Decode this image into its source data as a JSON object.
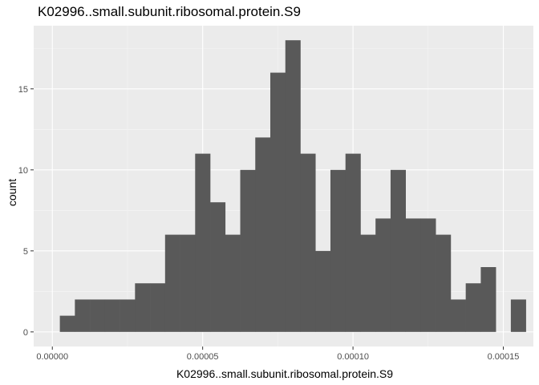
{
  "chart_data": {
    "type": "bar",
    "title": "K02996..small.subunit.ribosomal.protein.S9",
    "xlabel": "K02996..small.subunit.ribosomal.protein.S9",
    "ylabel": "count",
    "bin_width": 5e-06,
    "bins": [
      {
        "x_start": 2.5e-06,
        "count": 1
      },
      {
        "x_start": 7.5e-06,
        "count": 2
      },
      {
        "x_start": 1.25e-05,
        "count": 2
      },
      {
        "x_start": 1.75e-05,
        "count": 2
      },
      {
        "x_start": 2.25e-05,
        "count": 2
      },
      {
        "x_start": 2.75e-05,
        "count": 3
      },
      {
        "x_start": 3.25e-05,
        "count": 3
      },
      {
        "x_start": 3.75e-05,
        "count": 6
      },
      {
        "x_start": 4.25e-05,
        "count": 6
      },
      {
        "x_start": 4.75e-05,
        "count": 11
      },
      {
        "x_start": 5.25e-05,
        "count": 8
      },
      {
        "x_start": 5.75e-05,
        "count": 6
      },
      {
        "x_start": 6.25e-05,
        "count": 10
      },
      {
        "x_start": 6.75e-05,
        "count": 12
      },
      {
        "x_start": 7.25e-05,
        "count": 16
      },
      {
        "x_start": 7.75e-05,
        "count": 18
      },
      {
        "x_start": 8.25e-05,
        "count": 11
      },
      {
        "x_start": 8.75e-05,
        "count": 5
      },
      {
        "x_start": 9.25e-05,
        "count": 10
      },
      {
        "x_start": 9.75e-05,
        "count": 11
      },
      {
        "x_start": 0.0001025,
        "count": 6
      },
      {
        "x_start": 0.0001075,
        "count": 7
      },
      {
        "x_start": 0.0001125,
        "count": 10
      },
      {
        "x_start": 0.0001175,
        "count": 7
      },
      {
        "x_start": 0.0001225,
        "count": 7
      },
      {
        "x_start": 0.0001275,
        "count": 6
      },
      {
        "x_start": 0.0001325,
        "count": 2
      },
      {
        "x_start": 0.0001375,
        "count": 3
      },
      {
        "x_start": 0.0001425,
        "count": 4
      },
      {
        "x_start": 0.0001475,
        "count": 0
      },
      {
        "x_start": 0.0001525,
        "count": 2
      }
    ],
    "x_ticks": [
      {
        "value": 0,
        "label": "0.00000"
      },
      {
        "value": 5e-05,
        "label": "0.00005"
      },
      {
        "value": 0.0001,
        "label": "0.00010"
      },
      {
        "value": 0.00015,
        "label": "0.00015"
      }
    ],
    "y_ticks": [
      {
        "value": 0,
        "label": "0"
      },
      {
        "value": 5,
        "label": "5"
      },
      {
        "value": 10,
        "label": "10"
      },
      {
        "value": 15,
        "label": "15"
      }
    ],
    "xlim": [
      -6.2e-06,
      0.00016
    ],
    "ylim": [
      -0.9,
      18.9
    ],
    "grid": true,
    "colors": {
      "panel_background": "#ebebeb",
      "grid_major": "#ffffff",
      "grid_minor": "#f5f5f5",
      "bar_fill": "#595959",
      "tick_label": "#4d4d4d"
    }
  }
}
